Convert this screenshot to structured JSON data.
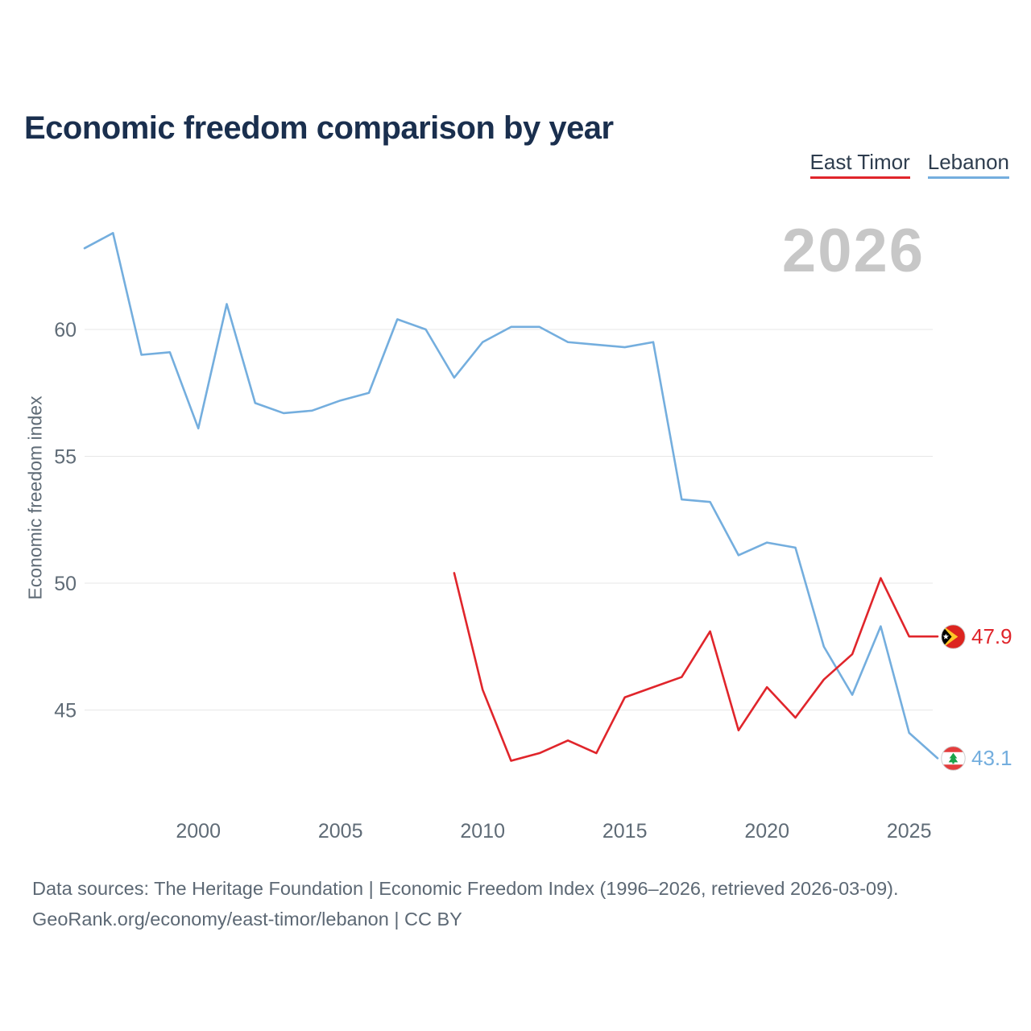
{
  "title": "Economic freedom comparison by year",
  "watermark_year": "2026",
  "legend": [
    {
      "label": "East Timor",
      "color": "#e0252b"
    },
    {
      "label": "Lebanon",
      "color": "#74aede"
    }
  ],
  "footer": {
    "line1": "Data sources: The Heritage Foundation | Economic Freedom Index (1996–2026, retrieved 2026-03-09).",
    "line2": "GeoRank.org/economy/east-timor/lebanon | CC BY"
  },
  "chart_data": {
    "type": "line",
    "title": "Economic freedom comparison by year",
    "xlabel": "",
    "ylabel": "Economic freedom index",
    "x_ticks": [
      2000,
      2005,
      2010,
      2015,
      2020,
      2025
    ],
    "y_ticks": [
      45,
      50,
      55,
      60
    ],
    "xlim": [
      1995.5,
      2028.5
    ],
    "ylim": [
      41,
      65
    ],
    "grid": "horizontal",
    "legend_position": "top-right",
    "series": [
      {
        "name": "East Timor",
        "color": "#e0252b",
        "end_label": "47.9",
        "x": [
          2009,
          2010,
          2011,
          2012,
          2013,
          2014,
          2015,
          2016,
          2017,
          2018,
          2019,
          2020,
          2021,
          2022,
          2023,
          2024,
          2025,
          2026
        ],
        "values": [
          50.4,
          45.8,
          43.0,
          43.3,
          43.8,
          43.3,
          45.5,
          45.9,
          46.3,
          48.1,
          44.2,
          45.9,
          44.7,
          46.2,
          47.2,
          50.2,
          47.9,
          47.9
        ]
      },
      {
        "name": "Lebanon",
        "color": "#74aede",
        "end_label": "43.1",
        "x": [
          1996,
          1997,
          1998,
          1999,
          2000,
          2001,
          2002,
          2003,
          2004,
          2005,
          2006,
          2007,
          2008,
          2009,
          2010,
          2011,
          2012,
          2013,
          2014,
          2015,
          2016,
          2017,
          2018,
          2019,
          2020,
          2021,
          2022,
          2023,
          2024,
          2025,
          2026
        ],
        "values": [
          63.2,
          63.8,
          59.0,
          59.1,
          56.1,
          61.0,
          57.1,
          56.7,
          56.8,
          57.2,
          57.5,
          60.4,
          60.0,
          58.1,
          59.5,
          60.1,
          60.1,
          59.5,
          59.4,
          59.3,
          59.5,
          53.3,
          53.2,
          51.1,
          51.6,
          51.4,
          47.5,
          45.6,
          48.3,
          44.1,
          43.1
        ]
      }
    ]
  }
}
